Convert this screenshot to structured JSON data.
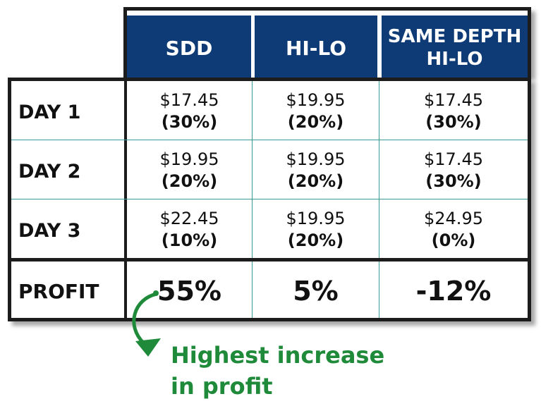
{
  "table": {
    "headers": [
      {
        "lines": [
          "SDD"
        ]
      },
      {
        "lines": [
          "HI-LO"
        ]
      },
      {
        "lines": [
          "SAME DEPTH",
          "HI-LO"
        ]
      }
    ],
    "rows": [
      {
        "label": "DAY 1",
        "cells": [
          {
            "price": "$17.45",
            "pct": "(30%)"
          },
          {
            "price": "$19.95",
            "pct": "(20%)"
          },
          {
            "price": "$17.45",
            "pct": "(30%)"
          }
        ]
      },
      {
        "label": "DAY 2",
        "cells": [
          {
            "price": "$19.95",
            "pct": "(20%)"
          },
          {
            "price": "$19.95",
            "pct": "(20%)"
          },
          {
            "price": "$17.45",
            "pct": "(30%)"
          }
        ]
      },
      {
        "label": "DAY 3",
        "cells": [
          {
            "price": "$22.45",
            "pct": "(10%)"
          },
          {
            "price": "$19.95",
            "pct": "(20%)"
          },
          {
            "price": "$24.95",
            "pct": "(0%)"
          }
        ]
      }
    ],
    "profit": {
      "label": "PROFIT",
      "values": [
        "55%",
        "5%",
        "-12%"
      ]
    }
  },
  "annotation": {
    "lines": [
      "Highest increase",
      "in profit"
    ]
  },
  "colors": {
    "header_bg": "#0e3a75",
    "grid_line": "#3a9c98",
    "annotation": "#1f8b3a",
    "border": "#1c1c1c"
  },
  "icons": {
    "annotation_arrow": "curved-arrow-icon"
  }
}
